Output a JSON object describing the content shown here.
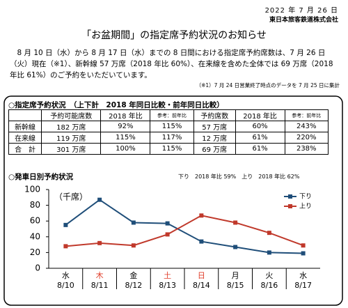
{
  "header": {
    "date": "2022 年 7 月 26 日",
    "company": "東日本旅客鉄道株式会社",
    "title": "「お盆期間」の指定席予約状況のお知らせ"
  },
  "body": "8 月 10 日（水）から 8 月 17 日（水）までの 8 日間における指定席予約席数は、7 月 26 日（火）現在（※1）、新幹線 57 万席（2018 年比 60%）、在来線を含めた全体では 69 万席（2018 年比 61%）のご予約をいただいています。",
  "note": "（※1）7 月 24 日営業終了時点のデータを 7 月 25 日に集計",
  "section1": {
    "title": "○指定席予約状況　（上下計　2018 年同日比較・前年同日比較）"
  },
  "table": {
    "header": [
      "予約可能席数",
      "2018 年比",
      "参考：前年比",
      "予約席数",
      "2018 年比",
      "参考：前年比"
    ],
    "rows": [
      [
        "新幹線",
        "182 万席",
        "92%",
        "115%",
        "57 万席",
        "60%",
        "243%"
      ],
      [
        "在来線",
        "119 万席",
        "115%",
        "117%",
        "12 万席",
        "61%",
        "220%"
      ],
      [
        "合　計",
        "301 万席",
        "100%",
        "115%",
        "69 万席",
        "61%",
        "238%"
      ]
    ]
  },
  "section2": {
    "title": "○発車日別予約状況",
    "annotation": "下り　2018 年比 59%　上り　2018 年比 62%"
  },
  "chart_data": {
    "type": "line",
    "y_label": "（千席）",
    "categories": [
      "8/10",
      "8/11",
      "8/12",
      "8/13",
      "8/14",
      "8/15",
      "8/16",
      "8/17"
    ],
    "weekdays": [
      "水",
      "木",
      "金",
      "土",
      "日",
      "月",
      "火",
      "水"
    ],
    "weekday_colors": [
      "#000000",
      "#e03c28",
      "#000000",
      "#e03c28",
      "#e03c28",
      "#000000",
      "#000000",
      "#000000"
    ],
    "series": [
      {
        "name": "下り",
        "color": "#1f4e79",
        "values": [
          55,
          87,
          58,
          57,
          34,
          27,
          20,
          19
        ]
      },
      {
        "name": "上り",
        "color": "#c0392b",
        "values": [
          28,
          32,
          29,
          43,
          67,
          58,
          45,
          29
        ]
      }
    ],
    "ylim": [
      0,
      100
    ],
    "yticks": [
      0,
      20,
      40,
      60,
      80,
      100
    ],
    "grid": false,
    "legend": "top-right"
  }
}
